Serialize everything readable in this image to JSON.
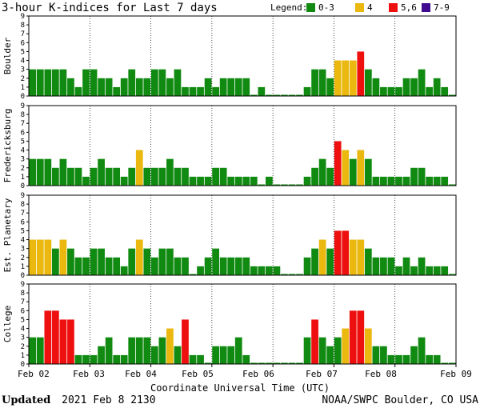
{
  "header": {
    "title": "3-hour K-indices for Last 7 days",
    "legend_title": "Legend:",
    "legend": [
      {
        "label": "0-3",
        "color": "#118a11"
      },
      {
        "label": "4",
        "color": "#eab80e"
      },
      {
        "label": "5,6",
        "color": "#ee0f0f"
      },
      {
        "label": "7-9",
        "color": "#3f0a8f"
      }
    ]
  },
  "footer": {
    "updated_label": "Updated",
    "updated_value": "2021 Feb  8 2130",
    "source": "NOAA/SWPC Boulder, CO USA"
  },
  "chart_data": {
    "type": "bar",
    "xlabel": "Coordinate Universal Time (UTC)",
    "x_day_labels": [
      "Feb 02",
      "Feb 03",
      "Feb 04",
      "Feb 05",
      "Feb 06",
      "Feb 07",
      "Feb 08",
      "Feb 09"
    ],
    "ylim": [
      0,
      9
    ],
    "yticks": [
      0,
      1,
      2,
      3,
      4,
      5,
      6,
      7,
      8,
      9
    ],
    "bars_per_day": 8,
    "color_rule": {
      "0-3": "#118a11",
      "4": "#eab80e",
      "5-6": "#ee0f0f",
      "7-9": "#3f0a8f"
    },
    "panels": [
      {
        "name": "Boulder",
        "values": [
          3,
          3,
          3,
          3,
          3,
          2,
          1,
          3,
          3,
          2,
          2,
          1,
          2,
          3,
          2,
          2,
          3,
          3,
          2,
          3,
          1,
          1,
          1,
          2,
          1,
          2,
          2,
          2,
          2,
          0,
          1,
          0,
          0,
          0,
          0,
          0,
          1,
          3,
          3,
          2,
          4,
          4,
          4,
          5,
          3,
          2,
          1,
          1,
          1,
          2,
          2,
          3,
          1,
          2,
          1,
          0
        ]
      },
      {
        "name": "Fredericksburg",
        "values": [
          3,
          3,
          3,
          2,
          3,
          2,
          2,
          1,
          2,
          3,
          2,
          2,
          1,
          2,
          4,
          2,
          2,
          2,
          3,
          2,
          2,
          1,
          1,
          1,
          2,
          2,
          1,
          1,
          1,
          1,
          0,
          1,
          0,
          0,
          0,
          0,
          1,
          2,
          3,
          2,
          5,
          4,
          3,
          4,
          3,
          1,
          1,
          1,
          1,
          1,
          2,
          2,
          1,
          1,
          1,
          0
        ]
      },
      {
        "name": "Est. Planetary",
        "values": [
          4,
          4,
          4,
          3,
          4,
          3,
          2,
          2,
          3,
          3,
          2,
          2,
          1,
          3,
          4,
          3,
          2,
          3,
          3,
          2,
          2,
          0,
          1,
          2,
          3,
          2,
          2,
          2,
          2,
          1,
          1,
          1,
          1,
          0,
          0,
          0,
          2,
          3,
          4,
          3,
          5,
          5,
          4,
          4,
          3,
          2,
          2,
          2,
          1,
          2,
          1,
          2,
          1,
          1,
          1,
          0
        ]
      },
      {
        "name": "College",
        "values": [
          3,
          3,
          6,
          6,
          5,
          5,
          1,
          1,
          1,
          2,
          3,
          1,
          1,
          3,
          3,
          3,
          2,
          3,
          4,
          2,
          5,
          1,
          1,
          0,
          2,
          2,
          2,
          3,
          1,
          0,
          0,
          0,
          0,
          0,
          0,
          0,
          3,
          5,
          3,
          2,
          3,
          4,
          6,
          6,
          4,
          2,
          2,
          1,
          1,
          1,
          2,
          3,
          1,
          1,
          0,
          0
        ]
      }
    ]
  }
}
